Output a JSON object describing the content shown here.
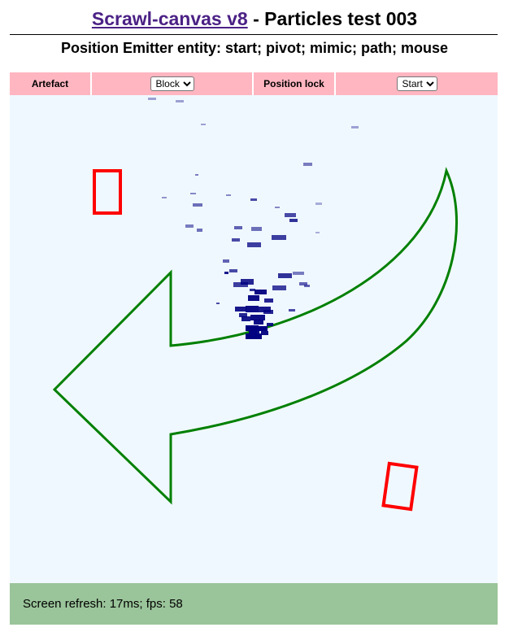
{
  "header": {
    "link_text": "Scrawl-canvas v8",
    "title_rest": " - Particles test 003",
    "subtitle": "Position Emitter entity: start; pivot; mimic; path; mouse"
  },
  "controls": {
    "artefact_label": "Artefact",
    "artefact_selected": "Block",
    "artefact_options": [
      "Block"
    ],
    "position_lock_label": "Position lock",
    "position_lock_selected": "Start",
    "position_lock_options": [
      "Start"
    ]
  },
  "canvas": {
    "background_color": "#f0f8ff",
    "arrow_stroke_color": "#008000",
    "block_stroke_color": "#ff0000",
    "particle_color": "#000080"
  },
  "report": {
    "text": "Screen refresh: 17ms; fps: 58"
  },
  "colors": {
    "controls_background": "#ffb6c1",
    "report_background": "#9ac49a",
    "link_color": "#4b2185"
  }
}
